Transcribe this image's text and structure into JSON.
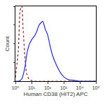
{
  "chart_data": {
    "type": "line",
    "xlabel": "Human CD38 (HIT2) APC",
    "ylabel": "Count",
    "log": "x",
    "x": [
      1,
      1.5,
      2,
      2.5,
      3,
      4,
      5,
      7,
      10,
      15,
      20,
      30,
      50,
      70,
      100,
      150,
      200,
      300,
      500,
      700,
      1000,
      2000,
      5000,
      10000,
      100000
    ],
    "series": [
      {
        "color": "#8b1a1a",
        "line_style": "dotted",
        "values": [
          5,
          40,
          95,
          100,
          70,
          30,
          10,
          3,
          1,
          0,
          0,
          0,
          0,
          0,
          0,
          0,
          0,
          0,
          0,
          0,
          0,
          0,
          0,
          0,
          0
        ]
      },
      {
        "color": "#2626e8",
        "line_style": "solid",
        "values": [
          0,
          0,
          1,
          3,
          8,
          20,
          35,
          48,
          55,
          60,
          65,
          75,
          80,
          70,
          62,
          45,
          35,
          25,
          15,
          10,
          6,
          2,
          1,
          0,
          0
        ]
      }
    ],
    "xlim": [
      1,
      100000
    ],
    "xticks": [
      {
        "value": 1,
        "label": "10⁰"
      },
      {
        "value": 10,
        "label": "10¹"
      },
      {
        "value": 100,
        "label": "10²"
      },
      {
        "value": 1000,
        "label": "10³"
      },
      {
        "value": 10000,
        "label": "10⁴"
      },
      {
        "value": 100000,
        "label": "10⁵"
      }
    ],
    "ylim": [
      0,
      100
    ],
    "yticks": [
      0,
      25,
      50,
      75,
      100
    ],
    "tick_labels": "x",
    "grid": false
  }
}
